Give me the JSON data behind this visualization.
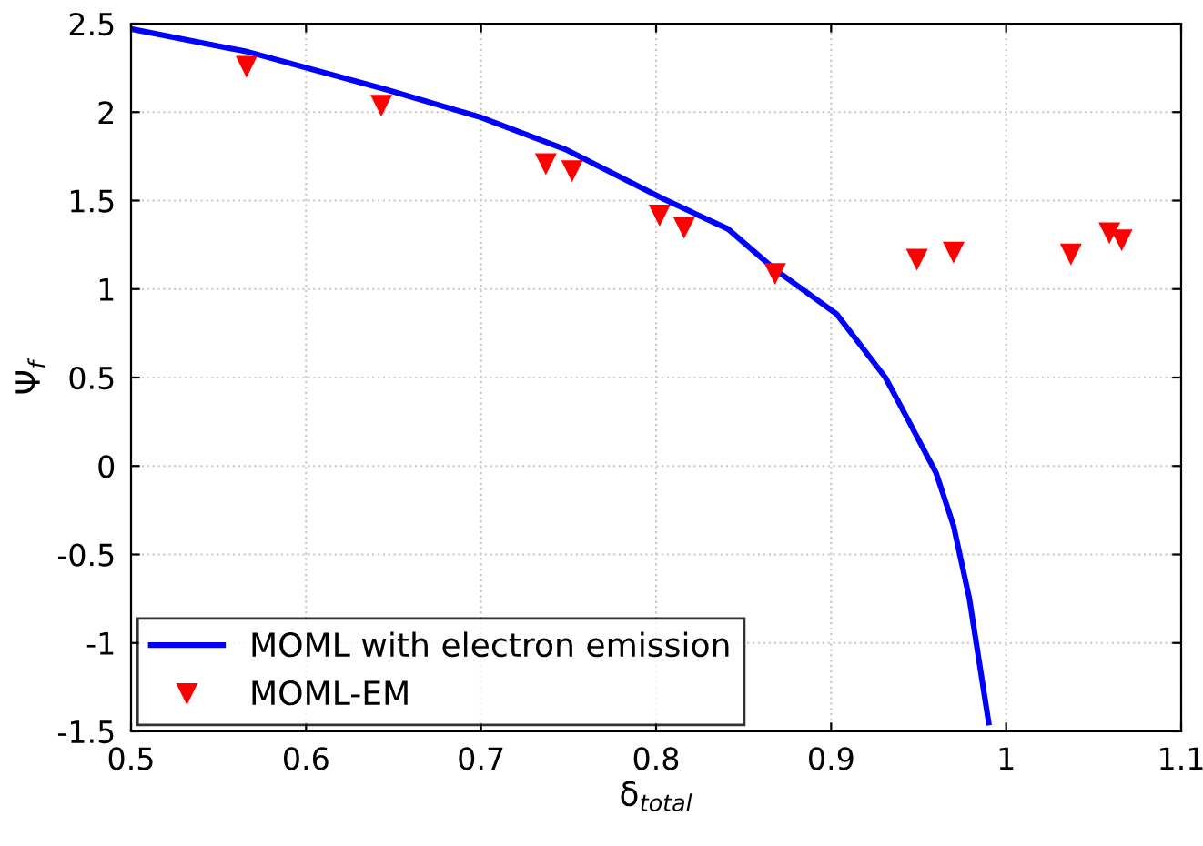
{
  "chart_data": {
    "type": "line",
    "xlabel": "δ$_{total}$",
    "ylabel": "Ψ$_{f}$",
    "xlim": [
      0.5,
      1.1
    ],
    "ylim": [
      -1.5,
      2.5
    ],
    "xticks": [
      0.5,
      0.6,
      0.7,
      0.8,
      0.9,
      1,
      1.1
    ],
    "yticks": [
      -1.5,
      -1,
      -0.5,
      0,
      0.5,
      1,
      1.5,
      2,
      2.5
    ],
    "grid": true,
    "legend": "bottom left",
    "series": [
      {
        "name": "MOML with electron emission",
        "color": "#0000ff",
        "marker": "none",
        "line_style": "solid",
        "x": [
          0.5,
          0.567,
          0.645,
          0.7,
          0.748,
          0.804,
          0.841,
          0.868,
          0.903,
          0.931,
          0.944,
          0.96,
          0.97,
          0.979,
          0.99
        ],
        "values": [
          2.47,
          2.34,
          2.13,
          1.97,
          1.79,
          1.51,
          1.34,
          1.11,
          0.86,
          0.5,
          0.26,
          -0.04,
          -0.34,
          -0.75,
          -1.45
        ]
      },
      {
        "name": "MOML-EM",
        "type": "scatter",
        "color": "#ff0000",
        "marker": "triangle",
        "x": [
          0.566,
          0.643,
          0.737,
          0.752,
          0.802,
          0.816,
          0.868,
          0.949,
          0.97,
          1.037,
          1.059,
          1.066
        ],
        "values": [
          2.26,
          2.04,
          1.71,
          1.67,
          1.42,
          1.35,
          1.09,
          1.17,
          1.21,
          1.2,
          1.32,
          1.28
        ]
      }
    ]
  }
}
